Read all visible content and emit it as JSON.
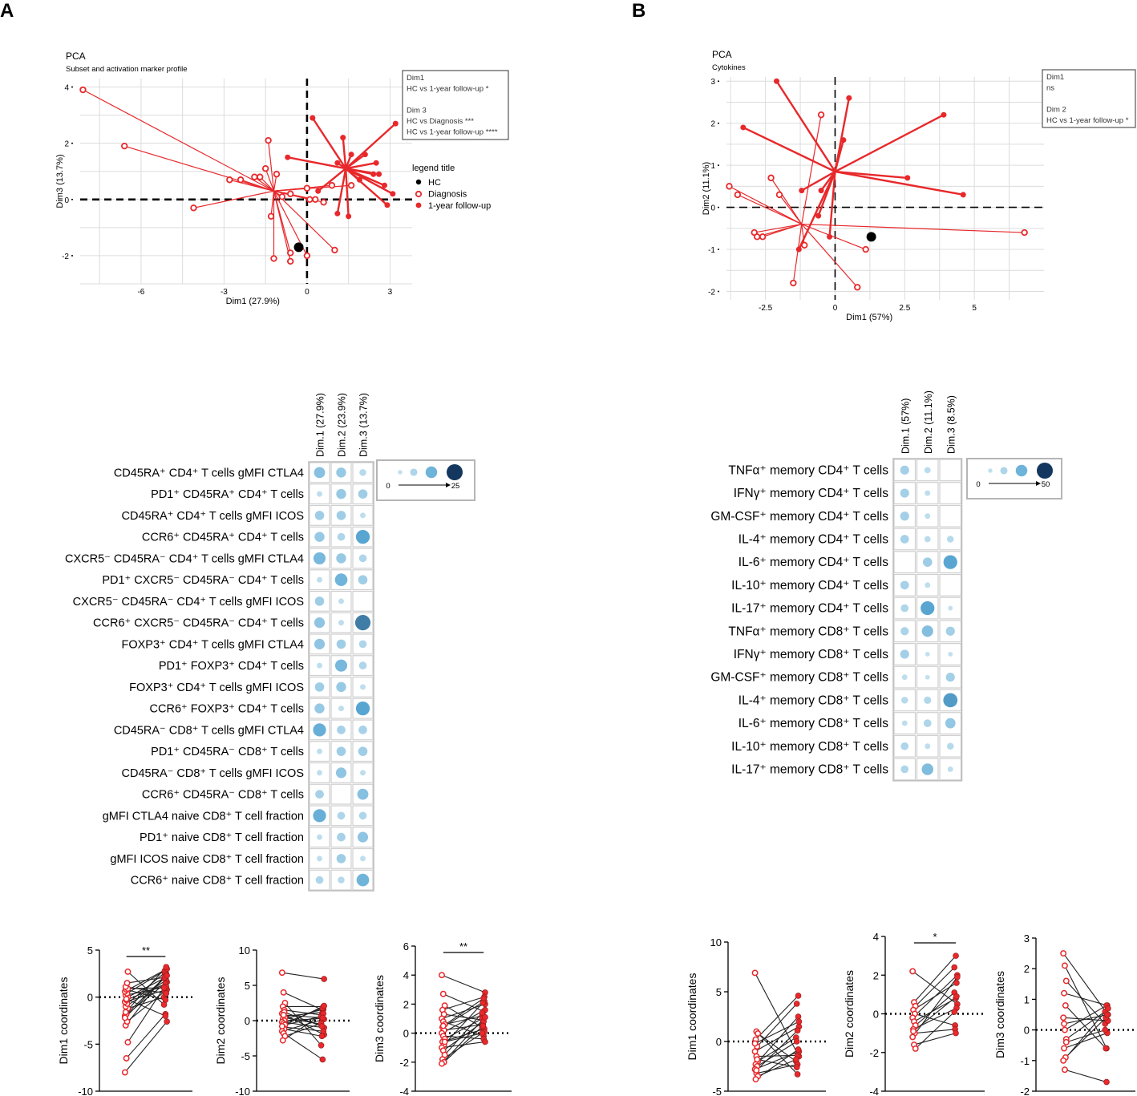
{
  "panel_labels": [
    "A",
    "B"
  ],
  "colors": {
    "red": "#e8282b",
    "black": "#000000",
    "grid": "#dcdcdc",
    "light": "#c6e2f0",
    "mid": "#5aa8d4",
    "dark": "#13375e"
  },
  "chart_data": [
    {
      "id": "pcaA",
      "type": "scatter",
      "title": "PCA",
      "subtitle": "Subset and activation marker profile",
      "xlabel": "Dim1 (27.9%)",
      "ylabel": "Dim3 (13.7%)",
      "xticks": [
        -6,
        -3,
        0,
        3
      ],
      "yticks": [
        -2,
        0,
        2,
        4
      ],
      "xlim": [
        -8.2,
        3.8
      ],
      "ylim": [
        -3.0,
        4.3
      ],
      "annotation": [
        "Dim1",
        "HC vs 1-year follow-up *",
        "",
        "Dim 3",
        "HC vs Diagnosis ***",
        "HC vs 1-year follow-up ****"
      ],
      "legend_title": "legend title",
      "legend": [
        "HC",
        "Diagnosis",
        "1-year follow-up"
      ],
      "hc": [
        -0.3,
        -1.7
      ],
      "diagnosis_center": [
        -1.2,
        0.3
      ],
      "followup_center": [
        1.4,
        1.1
      ],
      "diagnosis": [
        [
          -8.1,
          3.9
        ],
        [
          -6.6,
          1.9
        ],
        [
          -2.8,
          0.7
        ],
        [
          -2.4,
          0.7
        ],
        [
          -1.9,
          0.8
        ],
        [
          -1.7,
          0.8
        ],
        [
          -1.5,
          1.1
        ],
        [
          -1.4,
          2.1
        ],
        [
          -1.1,
          0.9
        ],
        [
          -4.1,
          -0.3
        ],
        [
          -1.3,
          -0.6
        ],
        [
          -1.2,
          -2.1
        ],
        [
          -0.9,
          0.1
        ],
        [
          -0.6,
          0.2
        ],
        [
          -0.6,
          -1.9
        ],
        [
          0.0,
          0.4
        ],
        [
          0.1,
          0.0
        ],
        [
          -0.6,
          -2.2
        ],
        [
          0.0,
          -2.0
        ],
        [
          0.3,
          0.0
        ],
        [
          0.6,
          -0.1
        ],
        [
          0.9,
          0.5
        ],
        [
          1.0,
          -1.8
        ],
        [
          1.6,
          0.5
        ]
      ],
      "followup": [
        [
          0.2,
          2.9
        ],
        [
          0.4,
          0.3
        ],
        [
          1.1,
          -0.5
        ],
        [
          1.3,
          2.2
        ],
        [
          1.6,
          1.6
        ],
        [
          1.9,
          0.7
        ],
        [
          2.1,
          1.6
        ],
        [
          2.4,
          0.9
        ],
        [
          2.6,
          0.9
        ],
        [
          2.8,
          0.5
        ],
        [
          3.1,
          0.2
        ],
        [
          3.2,
          2.7
        ],
        [
          1.5,
          -0.6
        ],
        [
          2.5,
          1.3
        ],
        [
          2.9,
          -0.2
        ],
        [
          -0.7,
          1.5
        ],
        [
          1.1,
          1.3
        ]
      ]
    },
    {
      "id": "pcaB",
      "type": "scatter",
      "title": "PCA",
      "subtitle": "Cytokines",
      "xlabel": "Dim1 (57%)",
      "ylabel": "Dim2 (11.1%)",
      "xticks": [
        -2.5,
        0.0,
        2.5,
        5.0
      ],
      "yticks": [
        -2,
        -1,
        0,
        1,
        2,
        3
      ],
      "xlim": [
        -3.9,
        7.5
      ],
      "ylim": [
        -2.2,
        3.1
      ],
      "annotation": [
        "Dim1",
        "ns",
        "",
        "Dim 2",
        "HC vs 1-year follow-up *"
      ],
      "hc": [
        1.3,
        -0.7
      ],
      "diagnosis_center": [
        -1.2,
        -0.4
      ],
      "followup_center": [
        0.0,
        0.85
      ],
      "diagnosis": [
        [
          -3.8,
          0.5
        ],
        [
          -3.5,
          0.3
        ],
        [
          -2.9,
          -0.6
        ],
        [
          -2.8,
          -0.7
        ],
        [
          -2.6,
          -0.7
        ],
        [
          -2.3,
          0.7
        ],
        [
          -2.0,
          0.3
        ],
        [
          -1.5,
          -1.8
        ],
        [
          -1.1,
          -0.9
        ],
        [
          -0.5,
          2.2
        ],
        [
          0.8,
          -1.9
        ],
        [
          1.1,
          -1.0
        ],
        [
          6.8,
          -0.6
        ]
      ],
      "followup": [
        [
          -3.3,
          1.9
        ],
        [
          -2.1,
          3.0
        ],
        [
          -1.3,
          -1.0
        ],
        [
          -1.2,
          0.4
        ],
        [
          -0.6,
          -0.2
        ],
        [
          -0.5,
          0.4
        ],
        [
          -0.2,
          -0.7
        ],
        [
          0.3,
          1.6
        ],
        [
          0.5,
          2.6
        ],
        [
          2.6,
          0.7
        ],
        [
          3.9,
          2.2
        ],
        [
          4.6,
          0.3
        ]
      ]
    },
    {
      "id": "dotA",
      "type": "heatmap",
      "columns": [
        "Dim.1 (27.9%)",
        "Dim.2 (23.9%)",
        "Dim.3 (13.7%)"
      ],
      "rows": [
        "CD45RA⁺ CD4⁺ T cells gMFI CTLA4",
        "PD1⁺ CD45RA⁺ CD4⁺ T cells",
        "CD45RA⁺ CD4⁺ T cells gMFI ICOS",
        "CCR6⁺ CD45RA⁺ CD4⁺ T cells",
        "CXCR5⁻ CD45RA⁻ CD4⁺ T cells gMFI CTLA4",
        "PD1⁺ CXCR5⁻ CD45RA⁻ CD4⁺ T cells",
        "CXCR5⁻ CD45RA⁻ CD4⁺ T cells gMFI ICOS",
        "CCR6⁺ CXCR5⁻ CD45RA⁻ CD4⁺ T cells",
        "FOXP3⁺ CD4⁺ T cells gMFI CTLA4",
        "PD1⁺ FOXP3⁺ CD4⁺ T cells",
        "FOXP3⁺ CD4⁺ T cells gMFI ICOS",
        "CCR6⁺ FOXP3⁺ CD4⁺ T cells",
        "CD45RA⁻ CD8⁺ T cells gMFI CTLA4",
        "PD1⁺ CD45RA⁻ CD8⁺ T cells",
        "CD45RA⁻ CD8⁺ T cells gMFI ICOS",
        "CCR6⁺ CD45RA⁻ CD8⁺ T cells",
        "gMFI CTLA4 naive CD8⁺ T cell fraction",
        "PD1⁺ naive CD8⁺ T cell fraction",
        "gMFI ICOS naive CD8⁺ T cell fraction",
        "CCR6⁺ naive CD8⁺ T cell fraction"
      ],
      "values": [
        [
          8,
          6,
          2
        ],
        [
          1,
          6,
          5
        ],
        [
          5,
          5,
          1
        ],
        [
          6,
          3,
          14
        ],
        [
          10,
          6,
          3
        ],
        [
          1,
          11,
          5
        ],
        [
          5,
          1,
          0
        ],
        [
          7,
          1,
          18
        ],
        [
          7,
          5,
          3
        ],
        [
          1,
          10,
          3
        ],
        [
          5,
          6,
          1
        ],
        [
          6,
          1,
          14
        ],
        [
          12,
          4,
          4
        ],
        [
          1,
          5,
          5
        ],
        [
          1,
          7,
          1
        ],
        [
          4,
          0,
          8
        ],
        [
          12,
          3,
          3
        ],
        [
          1,
          4,
          7
        ],
        [
          1,
          5,
          1
        ],
        [
          3,
          2,
          11
        ]
      ],
      "scale": [
        0,
        25
      ],
      "scale_labels": [
        "0",
        "25"
      ]
    },
    {
      "id": "dotB",
      "type": "heatmap",
      "columns": [
        "Dim.1 (57%)",
        "Dim.2 (11.1%)",
        "Dim.3 (8.5%)"
      ],
      "rows": [
        "TNFα⁺ memory CD4⁺ T cells",
        "IFNγ⁺ memory CD4⁺ T cells",
        "GM-CSF⁺ memory CD4⁺ T cells",
        "IL-4⁺ memory CD4⁺ T cells",
        "IL-6⁺ memory CD4⁺ T cells",
        "IL-10⁺ memory CD4⁺ T cells",
        "IL-17⁺ memory CD4⁺ T cells",
        "TNFα⁺ memory CD8⁺ T cells",
        "IFNγ⁺ memory CD8⁺ T cells",
        "GM-CSF⁺ memory CD8⁺ T cells",
        "IL-4⁺ memory CD8⁺ T cells",
        "IL-6⁺ memory CD8⁺ T cells",
        "IL-10⁺ memory CD8⁺ T cells",
        "IL-17⁺ memory CD8⁺ T cells"
      ],
      "values": [
        [
          9,
          3,
          0
        ],
        [
          9,
          2,
          0
        ],
        [
          9,
          2,
          0
        ],
        [
          8,
          3,
          4
        ],
        [
          0,
          10,
          28
        ],
        [
          8,
          2,
          0
        ],
        [
          6,
          28,
          1
        ],
        [
          7,
          17,
          9
        ],
        [
          9,
          1,
          1
        ],
        [
          2,
          1,
          9
        ],
        [
          4,
          5,
          30
        ],
        [
          2,
          6,
          13
        ],
        [
          6,
          2,
          4
        ],
        [
          6,
          18,
          2
        ]
      ],
      "scale": [
        0,
        50
      ],
      "scale_labels": [
        "0",
        "50"
      ]
    },
    {
      "id": "pA1",
      "type": "scatter",
      "ylabel": "Dim1 coordinates",
      "ylim": [
        -10,
        5
      ],
      "yticks": [
        -10,
        -5,
        0,
        5
      ],
      "sig": "**",
      "pairs": [
        [
          -8.0,
          -2.6
        ],
        [
          -6.5,
          -1.8
        ],
        [
          -4.8,
          1.0
        ],
        [
          -3.0,
          2.5
        ],
        [
          -2.6,
          0.6
        ],
        [
          -2.0,
          1.6
        ],
        [
          -1.8,
          2.2
        ],
        [
          -1.2,
          0.0
        ],
        [
          -1.0,
          1.8
        ],
        [
          -0.7,
          2.6
        ],
        [
          -0.5,
          0.8
        ],
        [
          -0.3,
          1.4
        ],
        [
          0.0,
          2.0
        ],
        [
          0.2,
          1.1
        ],
        [
          0.4,
          2.8
        ],
        [
          0.6,
          3.0
        ],
        [
          0.8,
          -0.3
        ],
        [
          0.9,
          1.0
        ],
        [
          1.1,
          0.4
        ],
        [
          1.5,
          2.1
        ],
        [
          -2.2,
          2.3
        ],
        [
          -0.2,
          -2.0
        ],
        [
          2.7,
          -0.8
        ],
        [
          -1.6,
          3.2
        ]
      ]
    },
    {
      "id": "pA2",
      "type": "scatter",
      "ylabel": "Dim2 coordinates",
      "ylim": [
        -10,
        10
      ],
      "yticks": [
        -10,
        -5,
        0,
        5,
        10
      ],
      "sig": "",
      "pairs": [
        [
          6.8,
          5.9
        ],
        [
          4.0,
          1.5
        ],
        [
          2.5,
          -3.5
        ],
        [
          2.0,
          2.0
        ],
        [
          1.5,
          0.8
        ],
        [
          1.0,
          -2.0
        ],
        [
          0.6,
          1.2
        ],
        [
          0.4,
          -0.5
        ],
        [
          0.2,
          1.6
        ],
        [
          0.0,
          0.3
        ],
        [
          -0.2,
          -1.0
        ],
        [
          -0.4,
          1.8
        ],
        [
          -0.6,
          0.6
        ],
        [
          -0.9,
          -1.5
        ],
        [
          -1.2,
          -2.2
        ],
        [
          -1.5,
          0.2
        ],
        [
          -1.8,
          -5.5
        ],
        [
          -2.2,
          -0.4
        ],
        [
          -2.8,
          1.0
        ],
        [
          1.2,
          -0.8
        ],
        [
          -0.8,
          2.1
        ],
        [
          0.8,
          0.4
        ]
      ]
    },
    {
      "id": "pA3",
      "type": "scatter",
      "ylabel": "Dim3 coordinates",
      "ylim": [
        -4,
        6
      ],
      "yticks": [
        -4,
        -2,
        0,
        2,
        4,
        6
      ],
      "sig": "**",
      "pairs": [
        [
          4.0,
          2.8
        ],
        [
          2.7,
          1.5
        ],
        [
          1.9,
          0.4
        ],
        [
          1.6,
          2.5
        ],
        [
          1.3,
          0.9
        ],
        [
          1.0,
          2.0
        ],
        [
          0.8,
          -0.2
        ],
        [
          0.6,
          1.2
        ],
        [
          0.4,
          2.2
        ],
        [
          0.2,
          0.6
        ],
        [
          0.0,
          1.6
        ],
        [
          -0.2,
          -0.4
        ],
        [
          -0.4,
          1.0
        ],
        [
          -0.6,
          0.3
        ],
        [
          -0.8,
          2.1
        ],
        [
          -1.0,
          -0.6
        ],
        [
          -1.2,
          0.8
        ],
        [
          -1.5,
          1.4
        ],
        [
          -1.8,
          0.1
        ],
        [
          -2.0,
          0.5
        ],
        [
          -2.1,
          1.1
        ],
        [
          0.5,
          2.4
        ],
        [
          -0.6,
          0.0
        ]
      ]
    },
    {
      "id": "pB1",
      "type": "scatter",
      "ylabel": "Dim1 coordinates",
      "ylim": [
        -5,
        10
      ],
      "yticks": [
        -5,
        0,
        5,
        10
      ],
      "sig": "",
      "pairs": [
        [
          6.9,
          -1.5
        ],
        [
          1.0,
          -3.3
        ],
        [
          0.8,
          -2.0
        ],
        [
          0.2,
          4.6
        ],
        [
          -0.5,
          3.8
        ],
        [
          -1.0,
          1.5
        ],
        [
          -1.5,
          -1.4
        ],
        [
          -2.0,
          0.4
        ],
        [
          -2.3,
          2.5
        ],
        [
          -2.5,
          0.0
        ],
        [
          -2.8,
          -1.0
        ],
        [
          -3.2,
          -2.3
        ],
        [
          -3.5,
          -1.8
        ],
        [
          -3.8,
          -0.8
        ],
        [
          -1.8,
          -2.6
        ],
        [
          -0.2,
          2.0
        ],
        [
          -2.9,
          1.1
        ]
      ]
    },
    {
      "id": "pB2",
      "type": "scatter",
      "ylabel": "Dim2 coordinates",
      "ylim": [
        -4,
        4
      ],
      "yticks": [
        -4,
        -2,
        0,
        2,
        4
      ],
      "sig": "*",
      "pairs": [
        [
          2.2,
          0.5
        ],
        [
          0.6,
          3.0
        ],
        [
          0.4,
          2.4
        ],
        [
          0.2,
          1.6
        ],
        [
          0.0,
          -0.6
        ],
        [
          -0.2,
          2.0
        ],
        [
          -0.4,
          0.8
        ],
        [
          -0.6,
          1.1
        ],
        [
          -0.8,
          0.3
        ],
        [
          -1.0,
          -0.8
        ],
        [
          -1.2,
          1.9
        ],
        [
          -1.6,
          -1.0
        ],
        [
          -1.8,
          0.1
        ],
        [
          -0.9,
          0.9
        ]
      ]
    },
    {
      "id": "pB3",
      "type": "scatter",
      "ylabel": "Dim3 coordinates",
      "ylim": [
        -2,
        3
      ],
      "yticks": [
        -2,
        -1,
        0,
        1,
        2,
        3
      ],
      "sig": "",
      "pairs": [
        [
          2.5,
          0.5
        ],
        [
          2.1,
          -0.6
        ],
        [
          1.6,
          0.2
        ],
        [
          1.2,
          0.8
        ],
        [
          0.8,
          -0.6
        ],
        [
          0.4,
          0.3
        ],
        [
          0.0,
          0.8
        ],
        [
          -0.3,
          0.6
        ],
        [
          -0.6,
          -0.1
        ],
        [
          -0.9,
          0.4
        ],
        [
          -1.0,
          0.7
        ],
        [
          -1.3,
          -1.7
        ],
        [
          -0.4,
          0.0
        ],
        [
          0.2,
          0.5
        ]
      ]
    }
  ]
}
